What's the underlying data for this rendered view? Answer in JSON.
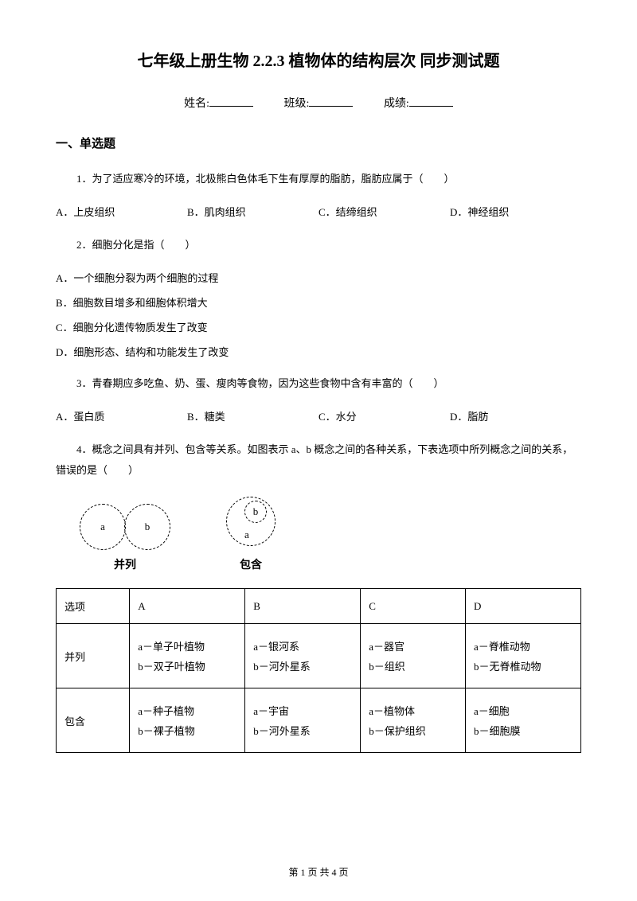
{
  "title": "七年级上册生物 2.2.3 植物体的结构层次 同步测试题",
  "formFields": {
    "name": "姓名:",
    "class": "班级:",
    "score": "成绩:"
  },
  "section1": "一、单选题",
  "q1": {
    "text": "1．为了适应寒冷的环境，北极熊白色体毛下生有厚厚的脂肪，脂肪应属于（　　）",
    "options": {
      "a": "A．上皮组织",
      "b": "B．肌肉组织",
      "c": "C．结缔组织",
      "d": "D．神经组织"
    }
  },
  "q2": {
    "text": "2．细胞分化是指（　　）",
    "options": {
      "a": "A．一个细胞分裂为两个细胞的过程",
      "b": "B．细胞数目增多和细胞体积增大",
      "c": "C．细胞分化遗传物质发生了改变",
      "d": "D．细胞形态、结构和功能发生了改变"
    }
  },
  "q3": {
    "text": "3．青春期应多吃鱼、奶、蛋、瘦肉等食物，因为这些食物中含有丰富的（　　）",
    "options": {
      "a": "A．蛋白质",
      "b": "B．糖类",
      "c": "C．水分",
      "d": "D．脂肪"
    }
  },
  "q4": {
    "text": "4．概念之间具有并列、包含等关系。如图表示 a、b 概念之间的各种关系，下表选项中所列概念之间的关系，错误的是（　　）"
  },
  "diagram": {
    "labelA": "a",
    "labelB": "b",
    "caption1": "并列",
    "caption2": "包含"
  },
  "table": {
    "headers": {
      "h1": "选项",
      "h2": "A",
      "h3": "B",
      "h4": "C",
      "h5": "D"
    },
    "row1": {
      "label": "并列",
      "A": {
        "line1": "a－单子叶植物",
        "line2": "b－双子叶植物"
      },
      "B": {
        "line1": "a－银河系",
        "line2": "b－河外星系"
      },
      "C": {
        "line1": "a－器官",
        "line2": "b－组织"
      },
      "D": {
        "line1": "a－脊椎动物",
        "line2": "b－无脊椎动物"
      }
    },
    "row2": {
      "label": "包含",
      "A": {
        "line1": "a－种子植物",
        "line2": "b－裸子植物"
      },
      "B": {
        "line1": "a－宇宙",
        "line2": "b－河外星系"
      },
      "C": {
        "line1": "a－植物体",
        "line2": "b－保护组织"
      },
      "D": {
        "line1": "a－细胞",
        "line2": "b－细胞膜"
      }
    }
  },
  "footer": "第 1 页 共 4 页"
}
